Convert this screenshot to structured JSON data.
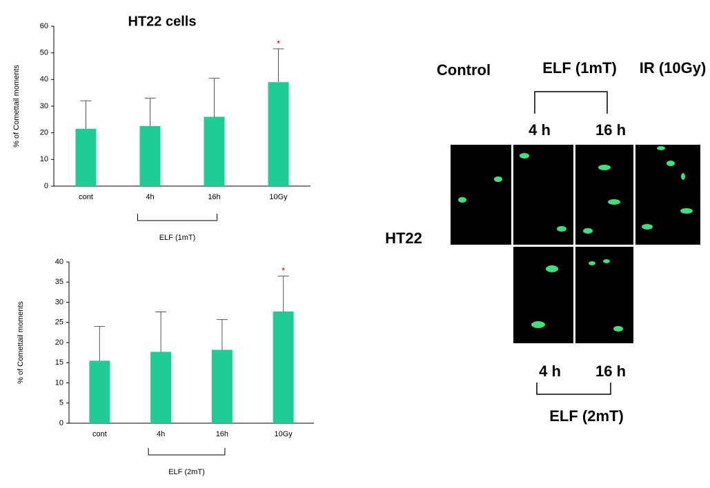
{
  "chart_data": [
    {
      "type": "bar",
      "title": "HT22 cells",
      "y_label": "% of Comettail moments",
      "categories": [
        "cont",
        "4h",
        "16h",
        "10Gy"
      ],
      "values": [
        21.5,
        22.5,
        26,
        39
      ],
      "errors": [
        10.5,
        10.5,
        14.5,
        12.5
      ],
      "color": "#1fcc96",
      "ylim": [
        0,
        60
      ],
      "yticks": [
        0,
        10,
        20,
        30,
        40,
        50,
        60
      ],
      "annotation": "*",
      "bracket_label": "ELF (1mT)"
    },
    {
      "type": "bar",
      "y_label": "% of Comettail moments",
      "categories": [
        "cont",
        "4h",
        "16h",
        "10Gy"
      ],
      "values": [
        15.5,
        17.7,
        18.2,
        27.7
      ],
      "errors": [
        8.5,
        9.9,
        7.5,
        8.8
      ],
      "color": "#1fcc96",
      "ylim": [
        0,
        40
      ],
      "yticks": [
        0,
        5,
        10,
        15,
        20,
        25,
        30,
        35,
        40
      ],
      "annotation": "*",
      "bracket_label": "ELF (2mT)"
    }
  ],
  "image_panel": {
    "control": "Control",
    "elf_1mt": "ELF (1mT)",
    "ir": "IR (10Gy)",
    "top_4h": "4 h",
    "top_16h": "16 h",
    "row_label": "HT22",
    "bottom_4h": "4 h",
    "bottom_16h": "16 h",
    "elf_2mt": "ELF (2mT)"
  }
}
